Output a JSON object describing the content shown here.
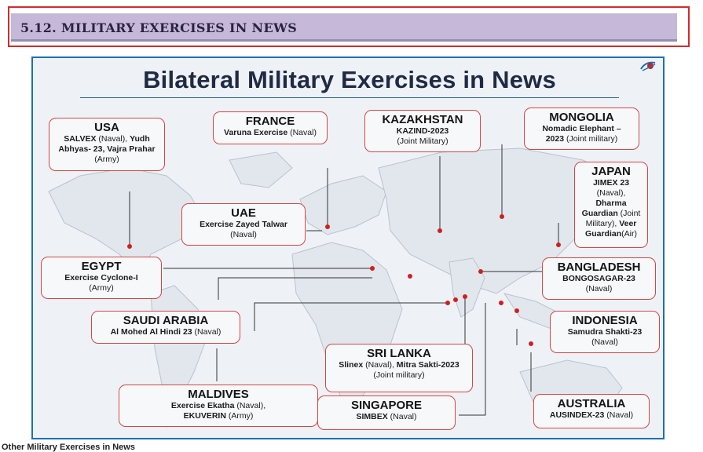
{
  "section": {
    "title": "5.12. MILITARY EXERCISES IN NEWS"
  },
  "infographic": {
    "title": "Bilateral Military Exercises in News",
    "cards": [
      {
        "key": "usa",
        "country": "USA",
        "lines": [
          [
            {
              "t": "SALVEX",
              "b": true
            },
            {
              "t": " (Naval), "
            },
            {
              "t": "Yudh",
              "b": true
            }
          ],
          [
            {
              "t": "Abhyas- 23,  Vajra Prahar",
              "b": true
            }
          ],
          [
            {
              "t": "(Army)"
            }
          ]
        ]
      },
      {
        "key": "france",
        "country": "FRANCE",
        "lines": [
          [
            {
              "t": "Varuna Exercise",
              "b": true
            },
            {
              "t": " (Naval)"
            }
          ]
        ]
      },
      {
        "key": "kazakhstan",
        "country": "KAZAKHSTAN",
        "lines": [
          [
            {
              "t": "KAZIND-2023",
              "b": true
            }
          ],
          [
            {
              "t": "(Joint Military)"
            }
          ]
        ]
      },
      {
        "key": "mongolia",
        "country": "MONGOLIA",
        "lines": [
          [
            {
              "t": "Nomadic Elephant –",
              "b": true
            }
          ],
          [
            {
              "t": "2023",
              "b": true
            },
            {
              "t": " (Joint military)"
            }
          ]
        ]
      },
      {
        "key": "japan",
        "country": "JAPAN",
        "lines": [
          [
            {
              "t": "JIMEX 23",
              "b": true
            }
          ],
          [
            {
              "t": "(Naval),"
            }
          ],
          [
            {
              "t": "Dharma",
              "b": true
            }
          ],
          [
            {
              "t": "Guardian",
              "b": true
            },
            {
              "t": " (Joint"
            }
          ],
          [
            {
              "t": "Military), "
            },
            {
              "t": "Veer",
              "b": true
            }
          ],
          [
            {
              "t": "Guardian",
              "b": true
            },
            {
              "t": "(Air)"
            }
          ]
        ]
      },
      {
        "key": "uae",
        "country": "UAE",
        "lines": [
          [
            {
              "t": "Exercise Zayed Talwar",
              "b": true
            }
          ],
          [
            {
              "t": "(Naval)"
            }
          ]
        ]
      },
      {
        "key": "egypt",
        "country": "EGYPT",
        "lines": [
          [
            {
              "t": "Exercise Cyclone-I",
              "b": true
            }
          ],
          [
            {
              "t": "(Army)"
            }
          ]
        ]
      },
      {
        "key": "bangladesh",
        "country": "BANGLADESH",
        "lines": [
          [
            {
              "t": "BONGOSAGAR-23",
              "b": true
            }
          ],
          [
            {
              "t": "(Naval)"
            }
          ]
        ]
      },
      {
        "key": "saudi",
        "country": "SAUDI ARABIA",
        "lines": [
          [
            {
              "t": "Al Mohed Al Hindi 23",
              "b": true
            },
            {
              "t": " (Naval)"
            }
          ]
        ]
      },
      {
        "key": "indonesia",
        "country": "INDONESIA",
        "lines": [
          [
            {
              "t": "Samudra Shakti-23",
              "b": true
            }
          ],
          [
            {
              "t": "(Naval)"
            }
          ]
        ]
      },
      {
        "key": "srilanka",
        "country": "SRI LANKA",
        "lines": [
          [
            {
              "t": "Slinex",
              "b": true
            },
            {
              "t": " (Naval), "
            },
            {
              "t": "Mitra Sakti-2023",
              "b": true
            }
          ],
          [
            {
              "t": "(Joint military)"
            }
          ]
        ]
      },
      {
        "key": "maldives",
        "country": "MALDIVES",
        "lines": [
          [
            {
              "t": "Exercise Ekatha",
              "b": true
            },
            {
              "t": " (Naval),"
            }
          ],
          [
            {
              "t": "EKUVERIN",
              "b": true
            },
            {
              "t": " (Army)"
            }
          ]
        ]
      },
      {
        "key": "singapore",
        "country": "SINGAPORE",
        "lines": [
          [
            {
              "t": "SIMBEX",
              "b": true
            },
            {
              "t": " (Naval)"
            }
          ]
        ]
      },
      {
        "key": "australia",
        "country": "AUSTRALIA",
        "lines": [
          [
            {
              "t": "AUSINDEX-23",
              "b": true
            },
            {
              "t": " (Naval)"
            }
          ]
        ]
      }
    ],
    "colors": {
      "card_border": "#d64545",
      "marker": "#d01f1f",
      "frame": "#1e6fb6",
      "section_bar": "#c6b8d9"
    },
    "logo_icon": "brand-logo-icon"
  },
  "footer": {
    "text": "Other Military Exercises in News"
  }
}
